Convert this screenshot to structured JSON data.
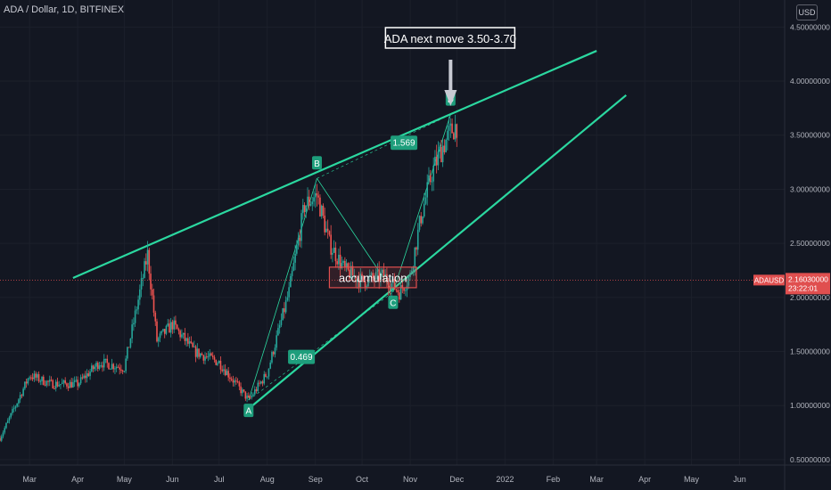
{
  "header": {
    "symbol_line": "ADA / Dollar, 1D, BITFINEX",
    "currency_button": "USD"
  },
  "colors": {
    "background": "#131722",
    "up": "#26a69a",
    "down": "#ef5350",
    "line": "#2bd8a0",
    "label_green": "#1e9e7c",
    "accumulation_box": "#e04f4f",
    "price_tag": "#e04f4f"
  },
  "callout": {
    "text": "ADA next move 3.50-3.70",
    "icon": "down-arrow-icon"
  },
  "chart_data": {
    "type": "candlestick",
    "symbol": "ADA / Dollar",
    "interval": "1D",
    "exchange": "BITFINEX",
    "y_axis": {
      "range": [
        0.45,
        4.75
      ],
      "ticks": [
        0.5,
        1.0,
        1.5,
        2.0,
        2.5,
        3.0,
        3.5,
        4.0,
        4.5
      ],
      "tick_labels": [
        "0.50000000",
        "1.00000000",
        "1.50000000",
        "2.00000000",
        "2.50000000",
        "3.00000000",
        "3.50000000",
        "4.00000000",
        "4.50000000"
      ]
    },
    "x_axis": {
      "range": [
        "2021-02-10",
        "2022-06-30"
      ],
      "ticks": [
        "2021-03-01",
        "2021-04-01",
        "2021-05-01",
        "2021-06-01",
        "2021-07-01",
        "2021-08-01",
        "2021-09-01",
        "2021-10-01",
        "2021-11-01",
        "2021-12-01",
        "2022-01-01",
        "2022-02-01",
        "2022-03-01",
        "2022-04-01",
        "2022-05-01",
        "2022-06-01"
      ],
      "tick_labels": [
        "Mar",
        "Apr",
        "May",
        "Jun",
        "Jul",
        "Aug",
        "Sep",
        "Oct",
        "Nov",
        "Dec",
        "2022",
        "Feb",
        "Mar",
        "Apr",
        "May",
        "Jun"
      ]
    },
    "price_path": [
      [
        "2021-02-10",
        0.7
      ],
      [
        "2021-02-20",
        1.0
      ],
      [
        "2021-03-01",
        1.28
      ],
      [
        "2021-03-15",
        1.2
      ],
      [
        "2021-04-01",
        1.2
      ],
      [
        "2021-04-15",
        1.4
      ],
      [
        "2021-05-01",
        1.35
      ],
      [
        "2021-05-16",
        2.4
      ],
      [
        "2021-05-22",
        1.6
      ],
      [
        "2021-06-01",
        1.75
      ],
      [
        "2021-06-15",
        1.5
      ],
      [
        "2021-07-01",
        1.4
      ],
      [
        "2021-07-20",
        1.05
      ],
      [
        "2021-08-01",
        1.3
      ],
      [
        "2021-08-15",
        2.05
      ],
      [
        "2021-08-25",
        2.85
      ],
      [
        "2021-09-02",
        2.95
      ],
      [
        "2021-09-10",
        2.5
      ],
      [
        "2021-09-20",
        2.25
      ],
      [
        "2021-10-01",
        2.15
      ],
      [
        "2021-10-15",
        2.2
      ],
      [
        "2021-10-25",
        2.05
      ],
      [
        "2021-11-01",
        2.2
      ],
      [
        "2021-11-08",
        2.75
      ],
      [
        "2021-11-15",
        3.15
      ],
      [
        "2021-11-22",
        3.4
      ],
      [
        "2021-11-28",
        3.55
      ],
      [
        "2021-12-01",
        3.6
      ]
    ],
    "trendlines": [
      {
        "from": [
          "2021-03-29",
          2.18
        ],
        "to": [
          "2022-03-01",
          4.28
        ]
      },
      {
        "from": [
          "2021-07-20",
          0.97
        ],
        "to": [
          "2022-03-20",
          3.87
        ]
      }
    ],
    "pattern": {
      "points": [
        {
          "label": "A",
          "date": "2021-07-20",
          "price": 1.05
        },
        {
          "label": "B",
          "date": "2021-09-02",
          "price": 3.1
        },
        {
          "label": "C",
          "date": "2021-10-21",
          "price": 2.05
        },
        {
          "label": "D",
          "date": "2021-11-27",
          "price": 3.69
        }
      ],
      "ratios": [
        {
          "text": "0.469",
          "date": "2021-08-23",
          "price": 1.45
        },
        {
          "text": "1.569",
          "date": "2021-10-28",
          "price": 3.43
        }
      ]
    },
    "annotations": [
      {
        "text": "accumulation",
        "from": [
          "2021-09-10",
          2.28
        ],
        "to": [
          "2021-11-05",
          2.09
        ]
      }
    ],
    "current_price": {
      "value": 2.1603,
      "label": "2.16030000",
      "symbol": "ADAUSD",
      "countdown": "23:22:01"
    }
  }
}
